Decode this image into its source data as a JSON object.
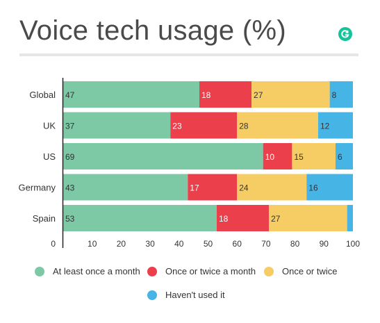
{
  "title": "Voice tech usage (%)",
  "colors": {
    "series": [
      "#7dc9a6",
      "#ec3f4c",
      "#f6cd64",
      "#47b4e6"
    ],
    "logo": "#15c39a",
    "rule": "#e6e6e6"
  },
  "logo_icon": "grammarly-logo-icon",
  "chart_data": {
    "type": "bar",
    "orientation": "horizontal",
    "stacked": true,
    "title": "Voice tech usage (%)",
    "categories": [
      "Global",
      "UK",
      "US",
      "Germany",
      "Spain"
    ],
    "series": [
      {
        "name": "At least once a month",
        "values": [
          47,
          37,
          69,
          43,
          53
        ]
      },
      {
        "name": "Once or twice a month",
        "values": [
          18,
          23,
          10,
          17,
          18
        ]
      },
      {
        "name": "Once or twice",
        "values": [
          27,
          28,
          15,
          24,
          27
        ]
      },
      {
        "name": "Haven't used it",
        "values": [
          8,
          12,
          6,
          16,
          2
        ]
      }
    ],
    "value_labels": [
      [
        "47",
        "37",
        "69",
        "43",
        "53"
      ],
      [
        "18",
        "23",
        "10",
        "17",
        "18"
      ],
      [
        "27",
        "28",
        "15",
        "24",
        "27"
      ],
      [
        "8",
        "12",
        "6",
        "16",
        ""
      ]
    ],
    "xlim": [
      0,
      100
    ],
    "xticks": [
      "0",
      "10",
      "20",
      "30",
      "40",
      "50",
      "60",
      "70",
      "80",
      "90",
      "100"
    ],
    "grid": false,
    "legend": "bottom"
  },
  "legend": {
    "items": [
      "At least once a month",
      "Once or twice a month",
      "Once or twice",
      "Haven't used it"
    ]
  }
}
